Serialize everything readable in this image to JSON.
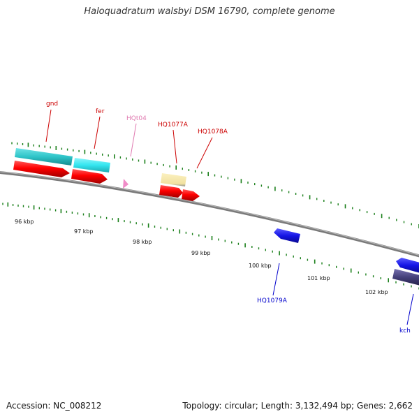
{
  "title": "Haloquadratum walsbyi DSM 16790, complete genome",
  "footer": {
    "accession": "Accession: NC_008212",
    "topology": "Topology: circular; Length: 3,132,494 bp; Genes: 2,662"
  },
  "colors": {
    "backbone": "#808080",
    "tick": "#1a7f1a",
    "red": "#ff0000",
    "cyan": "#2ec4c8",
    "light_cyan": "#33e6f0",
    "pink": "#f08cc8",
    "khaki": "#f2e2a0",
    "blue": "#1414e6",
    "navy": "#45407a",
    "label_red": "#cc0000",
    "label_blue": "#0000cc",
    "label_pink": "#e07ab0"
  },
  "scale": {
    "unit": "kbp",
    "ticks": [
      {
        "label": "96 kbp",
        "kbp": 96
      },
      {
        "label": "97 kbp",
        "kbp": 97
      },
      {
        "label": "98 kbp",
        "kbp": 98
      },
      {
        "label": "99 kbp",
        "kbp": 99
      },
      {
        "label": "100 kbp",
        "kbp": 100
      },
      {
        "label": "101 kbp",
        "kbp": 101
      },
      {
        "label": "102 kbp",
        "kbp": 102
      }
    ]
  },
  "genes": [
    {
      "label": "gnd",
      "color": "label_red"
    },
    {
      "label": "fer",
      "color": "label_red"
    },
    {
      "label": "HQt04",
      "color": "label_pink"
    },
    {
      "label": "HQ1077A",
      "color": "label_red"
    },
    {
      "label": "HQ1078A",
      "color": "label_red"
    },
    {
      "label": "HQ1079A",
      "color": "label_blue"
    },
    {
      "label": "kch",
      "color": "label_blue"
    }
  ]
}
